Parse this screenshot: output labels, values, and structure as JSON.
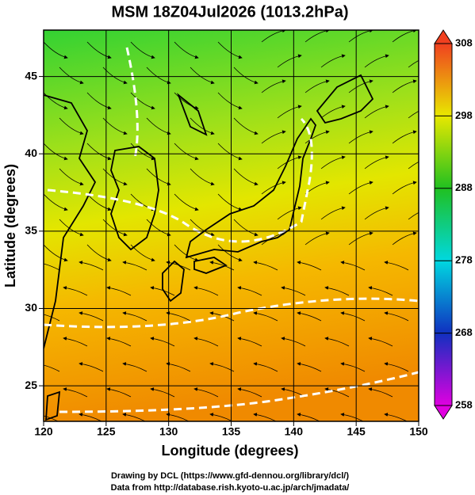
{
  "title": "MSM 18Z04Jul2026 (1013.2hPa)",
  "map": {
    "xlabel": "Longitude (degrees)",
    "ylabel": "Latitude  (degrees)",
    "xlim": [
      120,
      150
    ],
    "ylim": [
      22.7,
      48
    ],
    "xticks": [
      120,
      125,
      130,
      135,
      140,
      145,
      150
    ],
    "yticks": [
      25,
      30,
      35,
      40,
      45
    ]
  },
  "colorbar": {
    "lim": [
      258,
      308
    ],
    "ticks": [
      258,
      268,
      278,
      288,
      298,
      308
    ]
  },
  "footer": [
    "Drawing by DCL (https://www.gfd-dennou.org/library/dcl/)",
    "Data from http://database.rish.kyoto-u.ac.jp/arch/jmadata/"
  ]
}
